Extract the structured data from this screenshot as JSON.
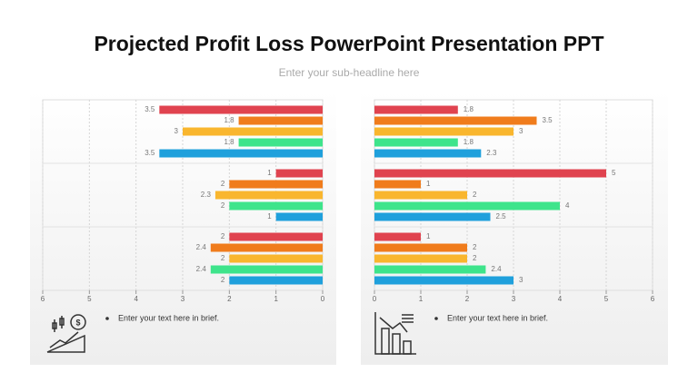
{
  "title": "Projected Profit Loss PowerPoint Presentation PPT",
  "subtitle": "Enter your sub-headline here",
  "notes": [
    "Enter your text here in brief.",
    "Enter your text here in brief."
  ],
  "chart_data": [
    {
      "type": "bar",
      "orientation": "horizontal",
      "categories": [
        null,
        null,
        null
      ],
      "series": [
        {
          "color": "#e0434f",
          "values": [
            3.5,
            1,
            2
          ]
        },
        {
          "color": "#f07c1c",
          "values": [
            1.8,
            2,
            2.4
          ]
        },
        {
          "color": "#f9b62e",
          "values": [
            3,
            2.3,
            2
          ]
        },
        {
          "color": "#3ee48b",
          "values": [
            1.8,
            2,
            2.4
          ]
        },
        {
          "color": "#1fa0dc",
          "values": [
            3.5,
            1,
            2
          ]
        }
      ],
      "xlim": [
        6,
        0
      ],
      "xticks": [
        6,
        5,
        4,
        3,
        2,
        1,
        0
      ],
      "grid": true
    },
    {
      "type": "bar",
      "orientation": "horizontal",
      "categories": [
        null,
        null,
        null
      ],
      "series": [
        {
          "color": "#e0434f",
          "values": [
            1.8,
            5,
            1
          ]
        },
        {
          "color": "#f07c1c",
          "values": [
            3.5,
            1,
            2
          ]
        },
        {
          "color": "#f9b62e",
          "values": [
            3,
            2,
            2
          ]
        },
        {
          "color": "#3ee48b",
          "values": [
            1.8,
            4,
            2.4
          ]
        },
        {
          "color": "#1fa0dc",
          "values": [
            2.3,
            2.5,
            3
          ]
        }
      ],
      "xlim": [
        0,
        6
      ],
      "xticks": [
        0,
        1,
        2,
        3,
        4,
        5,
        6
      ],
      "grid": true
    }
  ]
}
